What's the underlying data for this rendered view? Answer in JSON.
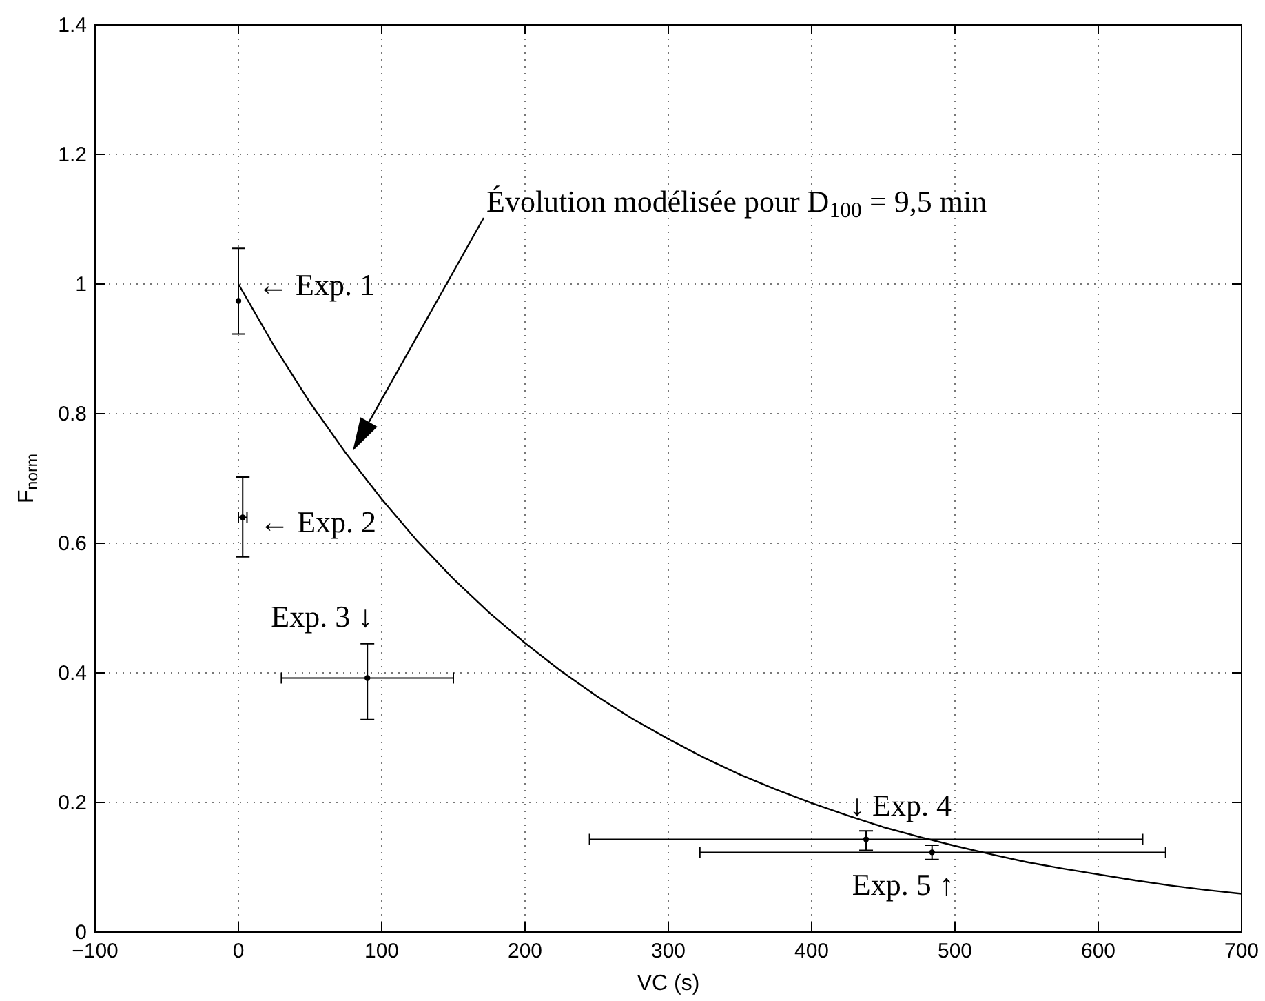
{
  "chart_data": {
    "type": "line",
    "xlabel": "VC (s)",
    "ylabel": "F$_{norm}$",
    "xlim": [
      -100,
      700
    ],
    "xticks": [
      {
        "value": -100,
        "label": "−100"
      },
      0,
      100,
      200,
      300,
      400,
      500,
      600,
      700
    ],
    "ylim": [
      0,
      1.4
    ],
    "yticks": [
      0,
      0.2,
      0.4,
      0.6,
      0.8,
      1,
      1.2,
      1.4
    ],
    "grid": true,
    "series": [
      {
        "color": "#000000",
        "x": [
          0,
          25,
          50,
          75,
          100,
          125,
          150,
          175,
          200,
          225,
          250,
          275,
          300,
          325,
          350,
          375,
          400,
          425,
          450,
          475,
          500,
          525,
          550,
          575,
          600,
          625,
          650,
          675,
          700
        ],
        "values": [
          1,
          0.904,
          0.817,
          0.739,
          0.668,
          0.603,
          0.545,
          0.493,
          0.446,
          0.403,
          0.364,
          0.329,
          0.298,
          0.269,
          0.243,
          0.22,
          0.199,
          0.18,
          0.162,
          0.147,
          0.133,
          0.12,
          0.108,
          0.098,
          0.089,
          0.08,
          0.072,
          0.065,
          0.059
        ]
      },
      {
        "type": "scatter",
        "color": "#000000",
        "marker": "circle",
        "x": [
          0,
          3,
          90,
          438,
          484
        ],
        "values": [
          0.974,
          0.64,
          0.392,
          0.143,
          0.123
        ],
        "errors": [
          [
            0.923,
            1.055
          ],
          [
            0.579,
            0.702
          ],
          [
            0.328,
            0.445
          ],
          [
            0.126,
            0.156
          ],
          [
            0.112,
            0.134
          ]
        ],
        "xerrors": [
          null,
          3,
          [
            30,
            150
          ],
          [
            245,
            631
          ],
          [
            322,
            647
          ]
        ]
      }
    ],
    "annotations": [
      {
        "text": "← Exp. 1",
        "x": 0,
        "y": 0.974
      },
      {
        "text": "← Exp. 2",
        "x": 3,
        "y": 0.64
      },
      {
        "text": "Exp. 3 ↓",
        "x": 90,
        "y": 0.392
      },
      {
        "text": "↓ Exp. 4",
        "x": 438,
        "y": 0.143
      },
      {
        "text": "Exp. 5 ↑",
        "x": 484,
        "y": 0.123
      },
      "Évolution modélisée pour D$_{100}$ = 9,5 min"
    ]
  }
}
